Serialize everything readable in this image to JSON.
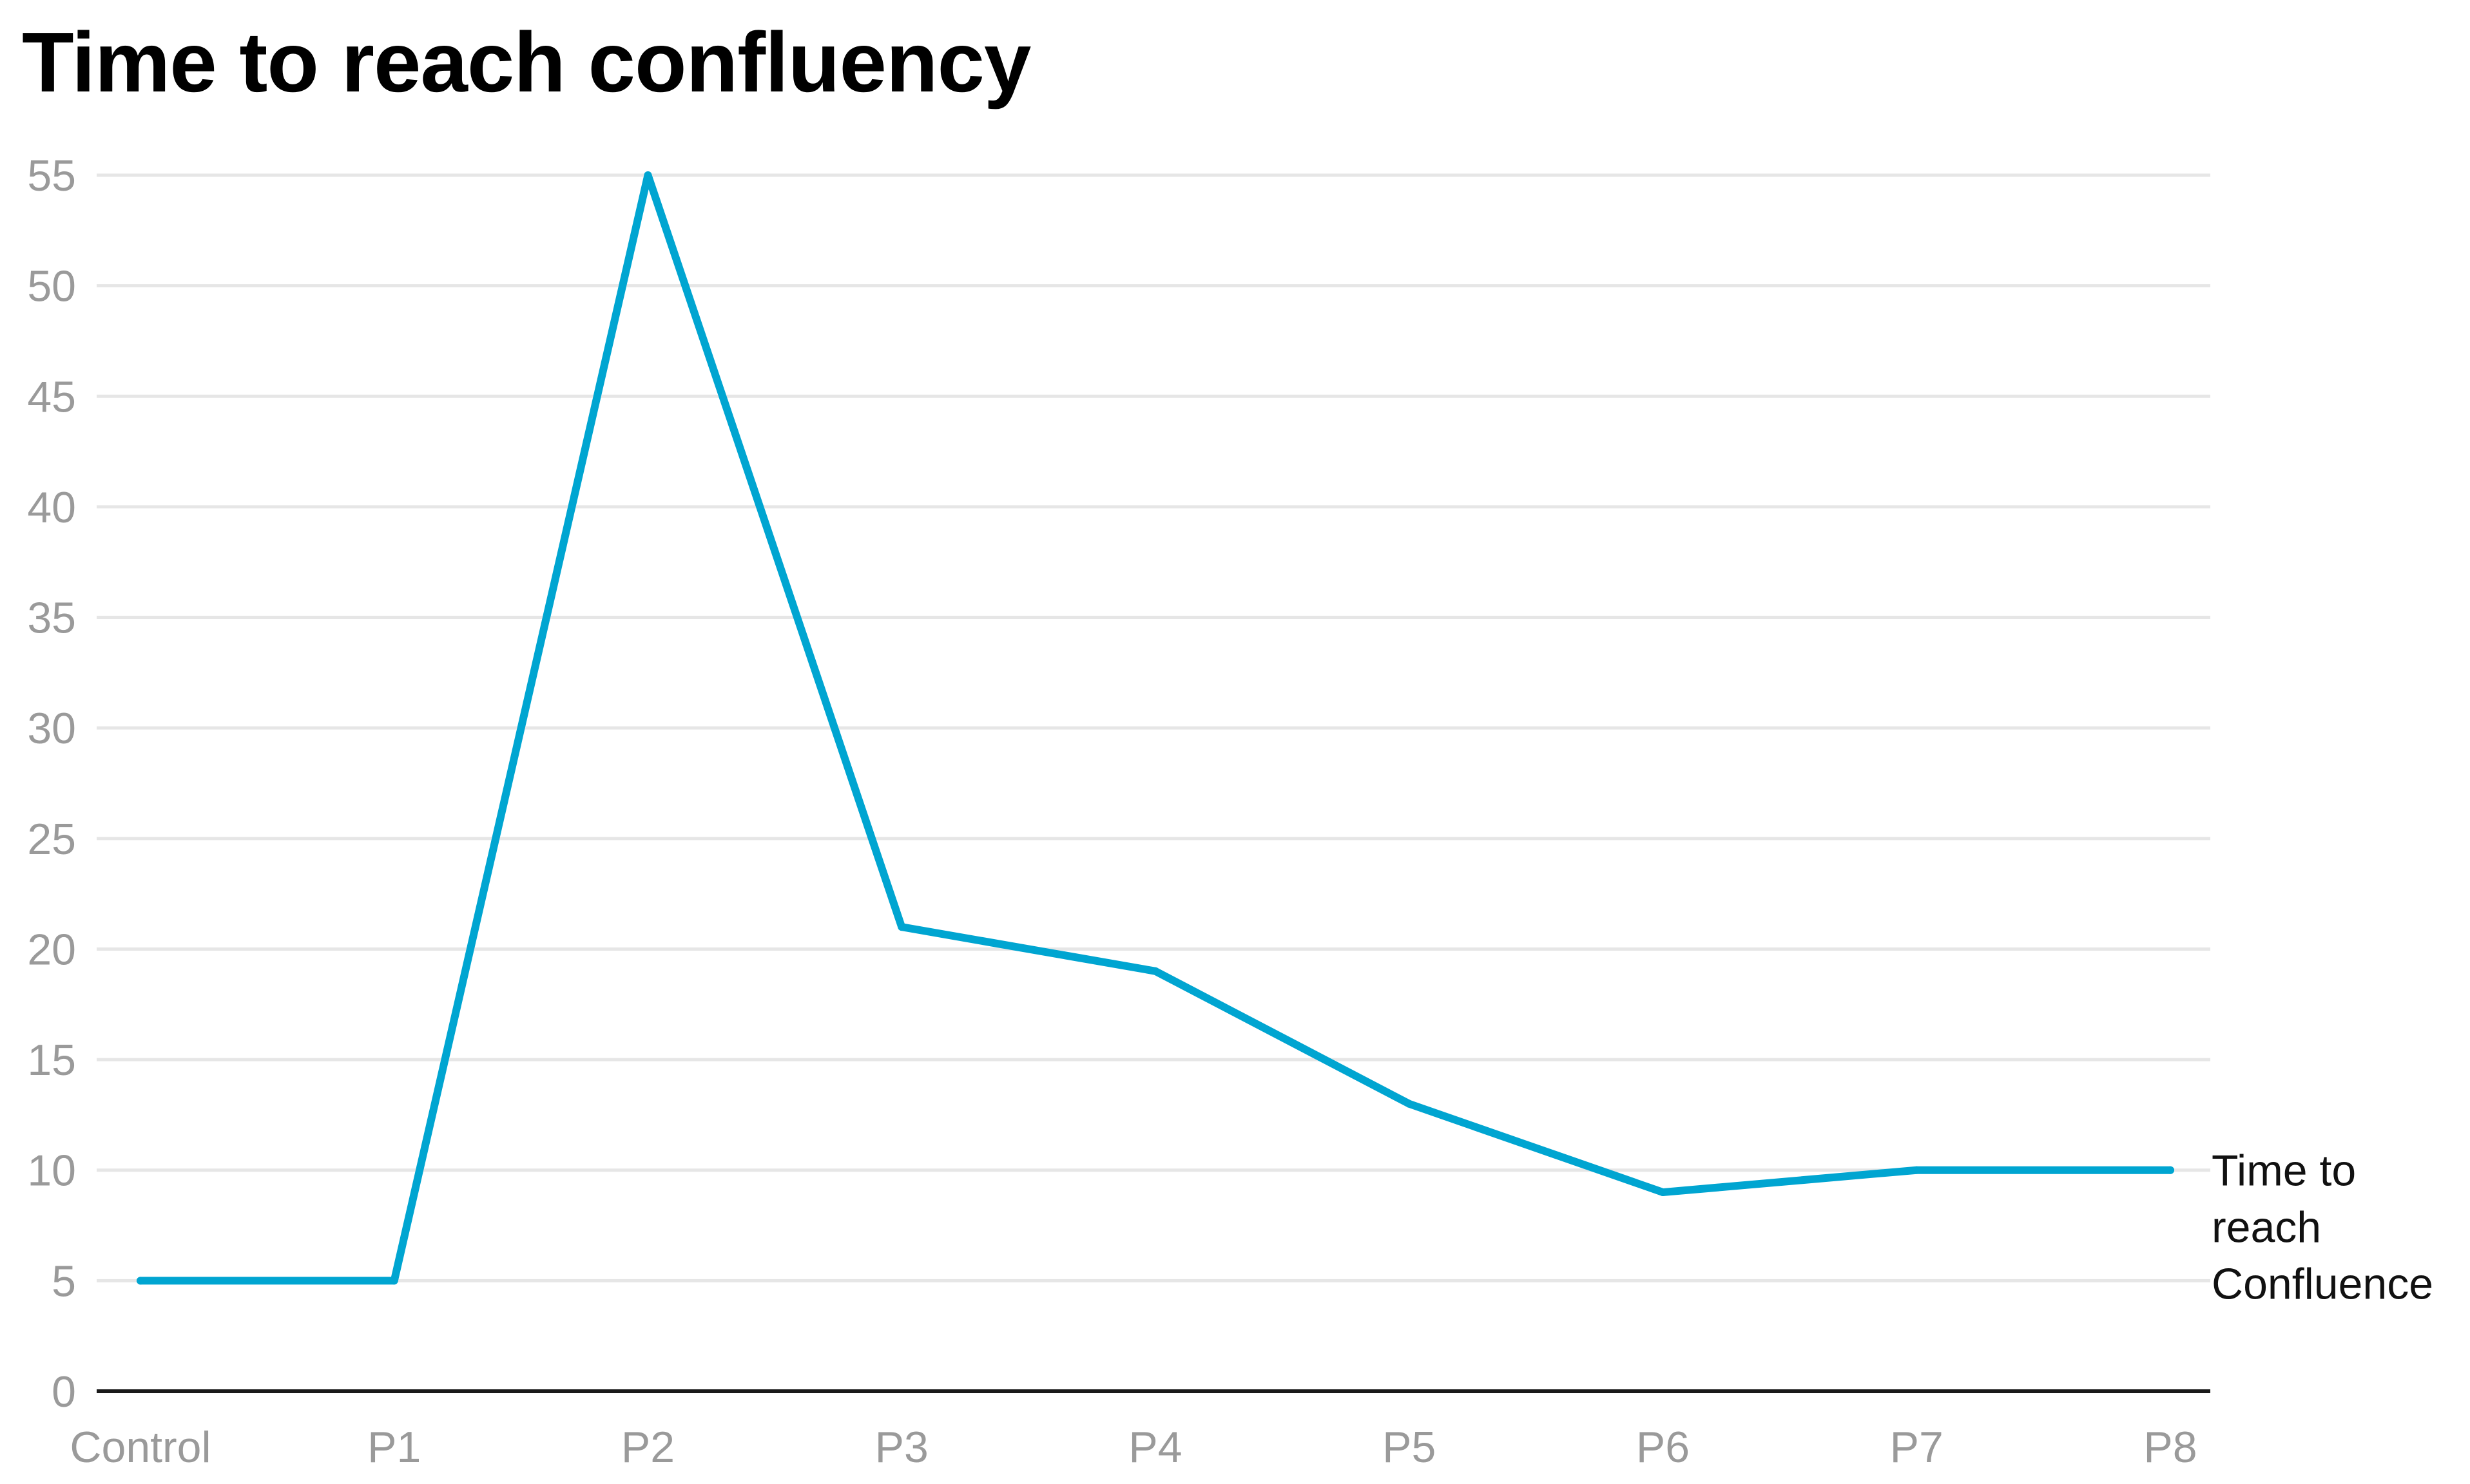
{
  "chart_data": {
    "type": "line",
    "title": "Time to reach confluency",
    "xlabel": "",
    "ylabel": "",
    "categories": [
      "Control",
      "P1",
      "P2",
      "P3",
      "P4",
      "P5",
      "P6",
      "P7",
      "P8"
    ],
    "series": [
      {
        "name": "Time to reach Confluence",
        "label_lines": [
          "Time to",
          "reach",
          "Confluence"
        ],
        "values": [
          5,
          5,
          55,
          21,
          19,
          13,
          9,
          10,
          10
        ],
        "color": "#00a5d1"
      }
    ],
    "ylim": [
      0,
      55
    ],
    "yticks": [
      0,
      5,
      10,
      15,
      20,
      25,
      30,
      35,
      40,
      45,
      50,
      55
    ],
    "grid": true,
    "legend": "direct-label-right",
    "colors": {
      "grid": "#e6e6e6",
      "axis": "#1a1a1a",
      "tick_text": "#9a9a9a"
    }
  }
}
